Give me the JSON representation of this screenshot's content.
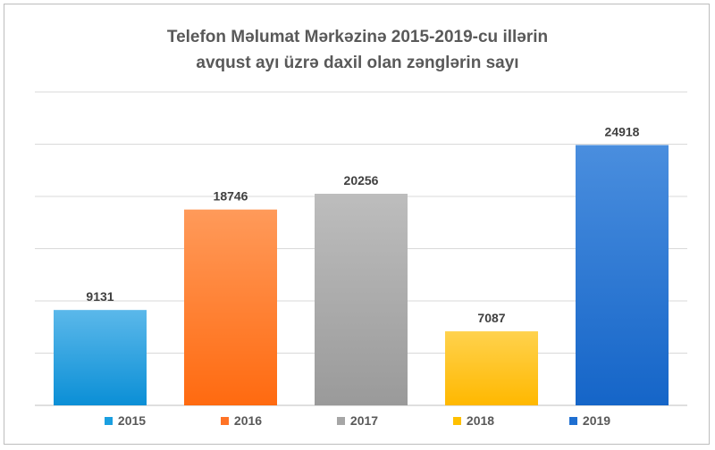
{
  "chart_data": {
    "type": "bar",
    "title_line1": "Telefon Məlumat Mərkəzinə 2015-2019-cu illərin",
    "title_line2": "avqust ayı üzrə daxil olan zənglərin sayı",
    "categories": [
      "2015",
      "2016",
      "2017",
      "2018",
      "2019"
    ],
    "values": [
      9131,
      18746,
      20256,
      7087,
      24918
    ],
    "ylim": [
      0,
      30000
    ],
    "grid": true,
    "legend_position": "bottom",
    "colors": [
      "#1a9fe0",
      "#ff7326",
      "#a6a6a6",
      "#ffc000",
      "#1f6fd1"
    ],
    "gradient_tops": [
      "#5bb8ea",
      "#ff9a5a",
      "#bdbdbd",
      "#ffd24d",
      "#4a8ede"
    ],
    "gradient_bottoms": [
      "#0b8fd6",
      "#ff6a10",
      "#9a9a9a",
      "#ffb800",
      "#1565c8"
    ]
  }
}
